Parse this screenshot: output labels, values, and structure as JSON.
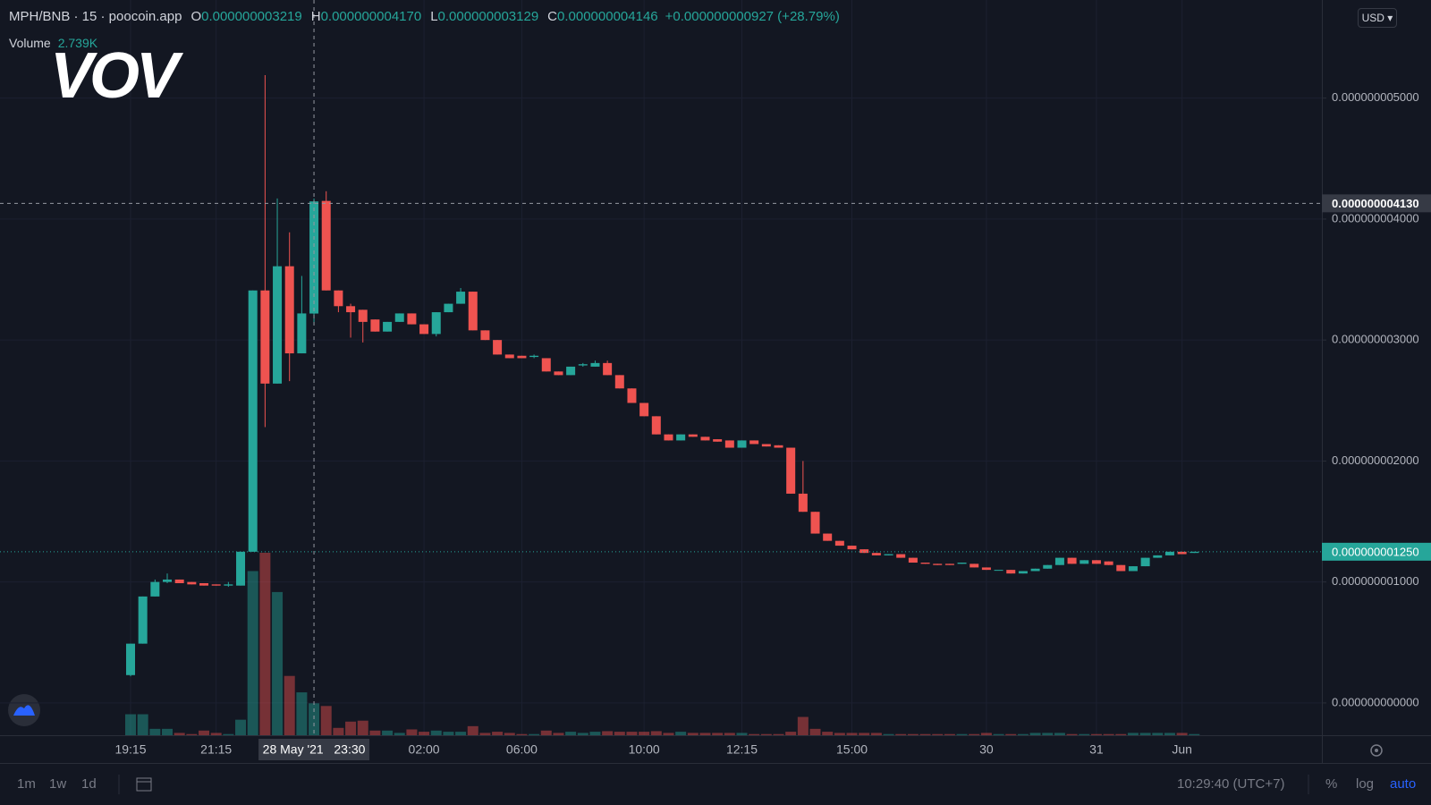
{
  "header": {
    "symbol": "MPH/BNB · 15 · poocoin.app",
    "ohlc": [
      {
        "key": "O",
        "value": "0.000000003219"
      },
      {
        "key": "H",
        "value": "0.000000004170"
      },
      {
        "key": "L",
        "value": "0.000000003129"
      },
      {
        "key": "C",
        "value": "0.000000004146"
      }
    ],
    "change": "+0.000000000927 (+28.79%)",
    "volume_label": "Volume",
    "volume_value": "2.739K",
    "currency": "USD ▾"
  },
  "watermark": "VOV",
  "toolbar": {
    "intervals": [
      "1m",
      "1w",
      "1d"
    ],
    "clock": "10:29:40 (UTC+7)",
    "options": [
      "%",
      "log",
      "auto"
    ]
  },
  "chart_data": {
    "type": "candlestick",
    "categories": [
      "19:15",
      null,
      null,
      null,
      null,
      null,
      null,
      "21:15",
      null,
      null,
      null,
      null,
      null,
      null,
      null,
      null,
      null,
      null,
      null,
      null,
      null,
      null,
      null,
      null,
      "02:00",
      null,
      null,
      null,
      null,
      null,
      null,
      null,
      "06:00",
      null,
      null,
      null,
      null,
      null,
      null,
      null,
      null,
      null,
      "10:00",
      null,
      null,
      null,
      null,
      null,
      null,
      null,
      "12:15",
      null,
      null,
      null,
      null,
      null,
      null,
      null,
      null,
      "15:00",
      null,
      null,
      null,
      null,
      null,
      null,
      null,
      null,
      null,
      null,
      "30",
      null,
      null,
      null,
      null,
      null,
      null,
      null,
      null,
      "31",
      null,
      null,
      null,
      null,
      null,
      null,
      "Jun",
      null
    ],
    "open": [
      2.3e-10,
      4.9e-10,
      8.8e-10,
      1e-09,
      1.02e-09,
      1e-09,
      9.9e-10,
      9.8e-10,
      9.7e-10,
      9.7e-10,
      1.25e-09,
      3.41e-09,
      2.64e-09,
      3.61e-09,
      2.89e-09,
      3.219e-09,
      4.15e-09,
      3.41e-09,
      3.28e-09,
      3.25e-09,
      3.17e-09,
      3.07e-09,
      3.15e-09,
      3.22e-09,
      3.13e-09,
      3.05e-09,
      3.23e-09,
      3.3e-09,
      3.4e-09,
      3.08e-09,
      3e-09,
      2.88e-09,
      2.87e-09,
      2.86e-09,
      2.85e-09,
      2.74e-09,
      2.71e-09,
      2.79e-09,
      2.78e-09,
      2.81e-09,
      2.71e-09,
      2.6e-09,
      2.48e-09,
      2.37e-09,
      2.22e-09,
      2.17e-09,
      2.22e-09,
      2.2e-09,
      2.18e-09,
      2.17e-09,
      2.11e-09,
      2.17e-09,
      2.14e-09,
      2.13e-09,
      2.11e-09,
      1.73e-09,
      1.58e-09,
      1.4e-09,
      1.34e-09,
      1.3e-09,
      1.27e-09,
      1.24e-09,
      1.22e-09,
      1.23e-09,
      1.2e-09,
      1.16e-09,
      1.15e-09,
      1.15e-09,
      1.15e-09,
      1.15e-09,
      1.12e-09,
      1.1e-09,
      1.1e-09,
      1.07e-09,
      1.09e-09,
      1.11e-09,
      1.14e-09,
      1.2e-09,
      1.15e-09,
      1.18e-09,
      1.17e-09,
      1.14e-09,
      1.09e-09,
      1.13e-09,
      1.2e-09,
      1.22e-09,
      1.25e-09,
      1.24e-09
    ],
    "high": [
      4.9e-10,
      8.8e-10,
      1.02e-09,
      1.07e-09,
      1.02e-09,
      1e-09,
      9.9e-10,
      9.8e-10,
      1e-09,
      1.25e-09,
      3.41e-09,
      5.19e-09,
      4.17e-09,
      3.89e-09,
      3.53e-09,
      4.17e-09,
      4.23e-09,
      3.41e-09,
      3.3e-09,
      3.25e-09,
      3.17e-09,
      3.15e-09,
      3.22e-09,
      3.22e-09,
      3.13e-09,
      3.23e-09,
      3.3e-09,
      3.43e-09,
      3.4e-09,
      3.08e-09,
      3e-09,
      2.88e-09,
      2.87e-09,
      2.88e-09,
      2.85e-09,
      2.74e-09,
      2.78e-09,
      2.81e-09,
      2.83e-09,
      2.83e-09,
      2.71e-09,
      2.6e-09,
      2.48e-09,
      2.37e-09,
      2.22e-09,
      2.22e-09,
      2.22e-09,
      2.2e-09,
      2.18e-09,
      2.17e-09,
      2.17e-09,
      2.17e-09,
      2.14e-09,
      2.13e-09,
      2.11e-09,
      2e-09,
      1.58e-09,
      1.4e-09,
      1.34e-09,
      1.3e-09,
      1.27e-09,
      1.24e-09,
      1.23e-09,
      1.23e-09,
      1.2e-09,
      1.16e-09,
      1.15e-09,
      1.15e-09,
      1.16e-09,
      1.15e-09,
      1.12e-09,
      1.1e-09,
      1.1e-09,
      1.09e-09,
      1.11e-09,
      1.14e-09,
      1.2e-09,
      1.2e-09,
      1.18e-09,
      1.18e-09,
      1.17e-09,
      1.14e-09,
      1.13e-09,
      1.2e-09,
      1.22e-09,
      1.25e-09,
      1.25e-09,
      1.25e-09
    ],
    "low": [
      2.2e-10,
      4.9e-10,
      8.8e-10,
      9.9e-10,
      9.9e-10,
      9.8e-10,
      9.7e-10,
      9.7e-10,
      9.6e-10,
      9.7e-10,
      1.25e-09,
      2.28e-09,
      2.64e-09,
      2.66e-09,
      2.89e-09,
      3.129e-09,
      3.41e-09,
      3.23e-09,
      3.02e-09,
      2.98e-09,
      3.07e-09,
      3.07e-09,
      3.15e-09,
      3.13e-09,
      3.05e-09,
      3.03e-09,
      3.23e-09,
      3.3e-09,
      3.08e-09,
      3e-09,
      2.88e-09,
      2.85e-09,
      2.85e-09,
      2.85e-09,
      2.74e-09,
      2.71e-09,
      2.71e-09,
      2.78e-09,
      2.78e-09,
      2.71e-09,
      2.6e-09,
      2.48e-09,
      2.37e-09,
      2.22e-09,
      2.17e-09,
      2.17e-09,
      2.2e-09,
      2.17e-09,
      2.16e-09,
      2.11e-09,
      2.11e-09,
      2.14e-09,
      2.12e-09,
      2.11e-09,
      1.73e-09,
      1.58e-09,
      1.4e-09,
      1.34e-09,
      1.3e-09,
      1.27e-09,
      1.24e-09,
      1.22e-09,
      1.22e-09,
      1.2e-09,
      1.16e-09,
      1.15e-09,
      1.14e-09,
      1.14e-09,
      1.15e-09,
      1.12e-09,
      1.1e-09,
      1.1e-09,
      1.07e-09,
      1.07e-09,
      1.09e-09,
      1.11e-09,
      1.14e-09,
      1.15e-09,
      1.15e-09,
      1.15e-09,
      1.14e-09,
      1.09e-09,
      1.09e-09,
      1.13e-09,
      1.2e-09,
      1.22e-09,
      1.23e-09,
      1.24e-09
    ],
    "close": [
      4.9e-10,
      8.8e-10,
      1e-09,
      1.02e-09,
      9.9e-10,
      9.8e-10,
      9.7e-10,
      9.7e-10,
      9.8e-10,
      1.25e-09,
      3.41e-09,
      2.64e-09,
      3.61e-09,
      2.89e-09,
      3.22e-09,
      4.146e-09,
      3.41e-09,
      3.28e-09,
      3.23e-09,
      3.15e-09,
      3.07e-09,
      3.15e-09,
      3.22e-09,
      3.13e-09,
      3.05e-09,
      3.23e-09,
      3.3e-09,
      3.4e-09,
      3.08e-09,
      3e-09,
      2.88e-09,
      2.85e-09,
      2.85e-09,
      2.87e-09,
      2.74e-09,
      2.71e-09,
      2.78e-09,
      2.8e-09,
      2.81e-09,
      2.71e-09,
      2.6e-09,
      2.48e-09,
      2.37e-09,
      2.22e-09,
      2.17e-09,
      2.22e-09,
      2.2e-09,
      2.17e-09,
      2.16e-09,
      2.11e-09,
      2.17e-09,
      2.14e-09,
      2.12e-09,
      2.11e-09,
      1.73e-09,
      1.58e-09,
      1.4e-09,
      1.34e-09,
      1.3e-09,
      1.27e-09,
      1.24e-09,
      1.22e-09,
      1.23e-09,
      1.2e-09,
      1.16e-09,
      1.15e-09,
      1.14e-09,
      1.14e-09,
      1.16e-09,
      1.12e-09,
      1.1e-09,
      1.1e-09,
      1.07e-09,
      1.09e-09,
      1.11e-09,
      1.14e-09,
      1.2e-09,
      1.15e-09,
      1.18e-09,
      1.15e-09,
      1.14e-09,
      1.09e-09,
      1.13e-09,
      1.2e-09,
      1.22e-09,
      1.25e-09,
      1.23e-09,
      1.25e-09
    ],
    "volume": {
      "name": "Volume",
      "values": [
        1.8,
        1.8,
        0.55,
        0.55,
        0.2,
        0.1,
        0.4,
        0.2,
        0.1,
        1.33,
        14.09,
        15.66,
        12.29,
        5.09,
        3.68,
        2.739,
        2.51,
        0.63,
        1.17,
        1.25,
        0.4,
        0.4,
        0.2,
        0.5,
        0.3,
        0.4,
        0.3,
        0.3,
        0.78,
        0.2,
        0.3,
        0.2,
        0.1,
        0.1,
        0.4,
        0.2,
        0.3,
        0.2,
        0.3,
        0.35,
        0.3,
        0.3,
        0.3,
        0.35,
        0.2,
        0.3,
        0.2,
        0.2,
        0.2,
        0.2,
        0.2,
        0.1,
        0.1,
        0.1,
        0.3,
        1.57,
        0.55,
        0.3,
        0.2,
        0.2,
        0.2,
        0.2,
        0.1,
        0.1,
        0.1,
        0.1,
        0.1,
        0.1,
        0.1,
        0.1,
        0.2,
        0.1,
        0.1,
        0.1,
        0.2,
        0.2,
        0.2,
        0.1,
        0.1,
        0.1,
        0.1,
        0.1,
        0.2,
        0.2,
        0.2,
        0.2,
        0.2,
        0.1
      ]
    },
    "up_color": "#26a69a",
    "down_color": "#ef5350",
    "ylim": [
      -2.67e-10,
      5.811e-09
    ],
    "yticks": [
      {
        "value": 0,
        "label": "0.000000000000"
      },
      {
        "value": 1e-09,
        "label": "0.000000001000"
      },
      {
        "value": 2e-09,
        "label": "0.000000002000"
      },
      {
        "value": 3e-09,
        "label": "0.000000003000"
      },
      {
        "value": 4e-09,
        "label": "0.000000004000"
      },
      {
        "value": 5e-09,
        "label": "0.000000005000"
      }
    ],
    "grid": true,
    "hover_index": 15,
    "crosshair": {
      "x_label": "28 May '21   23:30",
      "y": {
        "value": 4.13e-09,
        "label": "0.000000004130"
      }
    },
    "last_price": {
      "value": 1.25e-09,
      "label": "0.000000001250"
    }
  }
}
